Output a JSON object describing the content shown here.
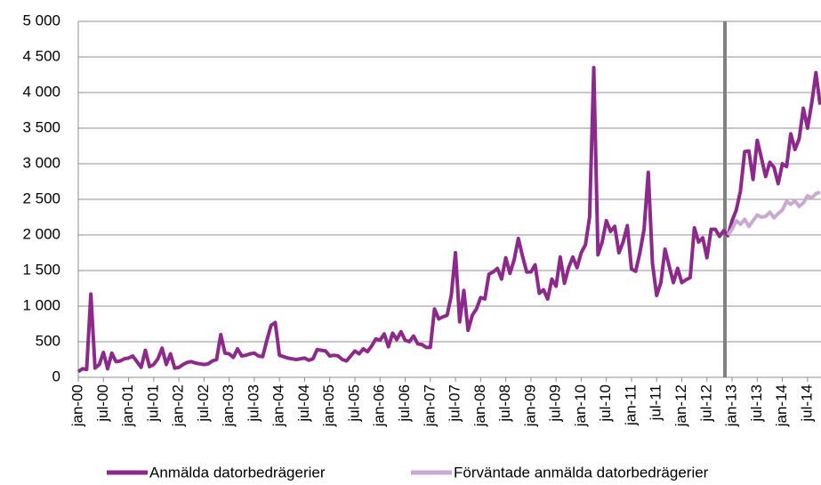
{
  "chart_data": {
    "type": "line",
    "categories": [
      "jan-00",
      null,
      null,
      null,
      null,
      null,
      "jul-00",
      null,
      null,
      null,
      null,
      null,
      "jan-01",
      null,
      null,
      null,
      null,
      null,
      "jul-01",
      null,
      null,
      null,
      null,
      null,
      "jan-02",
      null,
      null,
      null,
      null,
      null,
      "jul-02",
      null,
      null,
      null,
      null,
      null,
      "jan-03",
      null,
      null,
      null,
      null,
      null,
      "jul-03",
      null,
      null,
      null,
      null,
      null,
      "jan-04",
      null,
      null,
      null,
      null,
      null,
      "jul-04",
      null,
      null,
      null,
      null,
      null,
      "jan-05",
      null,
      null,
      null,
      null,
      null,
      "jul-05",
      null,
      null,
      null,
      null,
      null,
      "jan-06",
      null,
      null,
      null,
      null,
      null,
      "jul-06",
      null,
      null,
      null,
      null,
      null,
      "jan-07",
      null,
      null,
      null,
      null,
      null,
      "jul-07",
      null,
      null,
      null,
      null,
      null,
      "jan-08",
      null,
      null,
      null,
      null,
      null,
      "jul-08",
      null,
      null,
      null,
      null,
      null,
      "jan-09",
      null,
      null,
      null,
      null,
      null,
      "jul-09",
      null,
      null,
      null,
      null,
      null,
      "jan-10",
      null,
      null,
      null,
      null,
      null,
      "jul-10",
      null,
      null,
      null,
      null,
      null,
      "jan-11",
      null,
      null,
      null,
      null,
      null,
      "jul-11",
      null,
      null,
      null,
      null,
      null,
      "jan-12",
      null,
      null,
      null,
      null,
      null,
      "jul-12",
      null,
      null,
      null,
      null,
      null,
      "jan-13",
      null,
      null,
      null,
      null,
      null,
      "jul-13",
      null,
      null,
      null,
      null,
      null,
      "jan-14",
      null,
      null,
      null,
      null,
      null,
      "jul-14",
      null,
      null,
      null
    ],
    "series": [
      {
        "name": "Anmälda datorbedrägerier",
        "color": "#8b2a8b",
        "values": [
          80,
          120,
          110,
          1170,
          130,
          180,
          350,
          120,
          340,
          220,
          230,
          260,
          270,
          300,
          220,
          140,
          380,
          150,
          180,
          260,
          410,
          180,
          330,
          130,
          140,
          180,
          210,
          220,
          200,
          190,
          180,
          190,
          230,
          250,
          600,
          340,
          330,
          280,
          400,
          300,
          310,
          330,
          340,
          300,
          290,
          520,
          730,
          770,
          310,
          290,
          270,
          260,
          250,
          260,
          270,
          240,
          260,
          390,
          380,
          370,
          300,
          310,
          300,
          250,
          230,
          300,
          370,
          330,
          400,
          360,
          440,
          540,
          520,
          610,
          430,
          620,
          530,
          640,
          520,
          500,
          580,
          470,
          460,
          420,
          420,
          960,
          820,
          850,
          870,
          1150,
          1750,
          780,
          1220,
          660,
          870,
          960,
          1120,
          1100,
          1450,
          1480,
          1530,
          1380,
          1680,
          1460,
          1650,
          1950,
          1700,
          1480,
          1480,
          1580,
          1180,
          1230,
          1100,
          1380,
          1280,
          1690,
          1320,
          1540,
          1690,
          1540,
          1750,
          1860,
          2250,
          4350,
          1720,
          1900,
          2200,
          2050,
          2120,
          1750,
          1900,
          2130,
          1520,
          1490,
          1750,
          2080,
          2880,
          1600,
          1150,
          1330,
          1800,
          1560,
          1330,
          1530,
          1330,
          1370,
          1400,
          2100,
          1900,
          1960,
          1680,
          2080,
          2080,
          1980,
          2060,
          1990,
          2200,
          2350,
          2620,
          3170,
          3180,
          2780,
          3330,
          3080,
          2820,
          3020,
          2950,
          2720,
          3000,
          2960,
          3420,
          3200,
          3350,
          3780,
          3500,
          3850,
          4280,
          3830
        ]
      },
      {
        "name": "Förväntade anmälda datorbedrägerier",
        "color": "#c9a9d1",
        "values": [
          null,
          null,
          null,
          null,
          null,
          null,
          null,
          null,
          null,
          null,
          null,
          null,
          null,
          null,
          null,
          null,
          null,
          null,
          null,
          null,
          null,
          null,
          null,
          null,
          null,
          null,
          null,
          null,
          null,
          null,
          null,
          null,
          null,
          null,
          null,
          null,
          null,
          null,
          null,
          null,
          null,
          null,
          null,
          null,
          null,
          null,
          null,
          null,
          null,
          null,
          null,
          null,
          null,
          null,
          null,
          null,
          null,
          null,
          null,
          null,
          null,
          null,
          null,
          null,
          null,
          null,
          null,
          null,
          null,
          null,
          null,
          null,
          null,
          null,
          null,
          null,
          null,
          null,
          null,
          null,
          null,
          null,
          null,
          null,
          null,
          null,
          null,
          null,
          null,
          null,
          null,
          null,
          null,
          null,
          null,
          null,
          null,
          null,
          null,
          null,
          null,
          null,
          null,
          null,
          null,
          null,
          null,
          null,
          null,
          null,
          null,
          null,
          null,
          null,
          null,
          null,
          null,
          null,
          null,
          null,
          null,
          null,
          null,
          null,
          null,
          null,
          null,
          null,
          null,
          null,
          null,
          null,
          null,
          null,
          null,
          null,
          null,
          null,
          null,
          null,
          null,
          null,
          null,
          null,
          null,
          null,
          null,
          null,
          null,
          null,
          null,
          null,
          null,
          null,
          null,
          2000,
          2080,
          2200,
          2150,
          2220,
          2120,
          2200,
          2280,
          2250,
          2260,
          2320,
          2240,
          2300,
          2350,
          2470,
          2430,
          2480,
          2400,
          2450,
          2550,
          2520,
          2580,
          2600
        ]
      }
    ],
    "ylim": [
      0,
      5000
    ],
    "yticks": [
      0,
      500,
      {
        "value": 1000,
        "label": "1 000"
      },
      {
        "value": 1500,
        "label": "1 500"
      },
      {
        "value": 2000,
        "label": "2 000"
      },
      {
        "value": 2500,
        "label": "2 500"
      },
      {
        "value": 3000,
        "label": "3 000"
      },
      {
        "value": 3500,
        "label": "3 500"
      },
      {
        "value": 4000,
        "label": "4 000"
      },
      {
        "value": 4500,
        "label": "4 500"
      },
      {
        "value": 5000,
        "label": "5 000"
      }
    ],
    "grid": true,
    "legend": "bottom"
  }
}
